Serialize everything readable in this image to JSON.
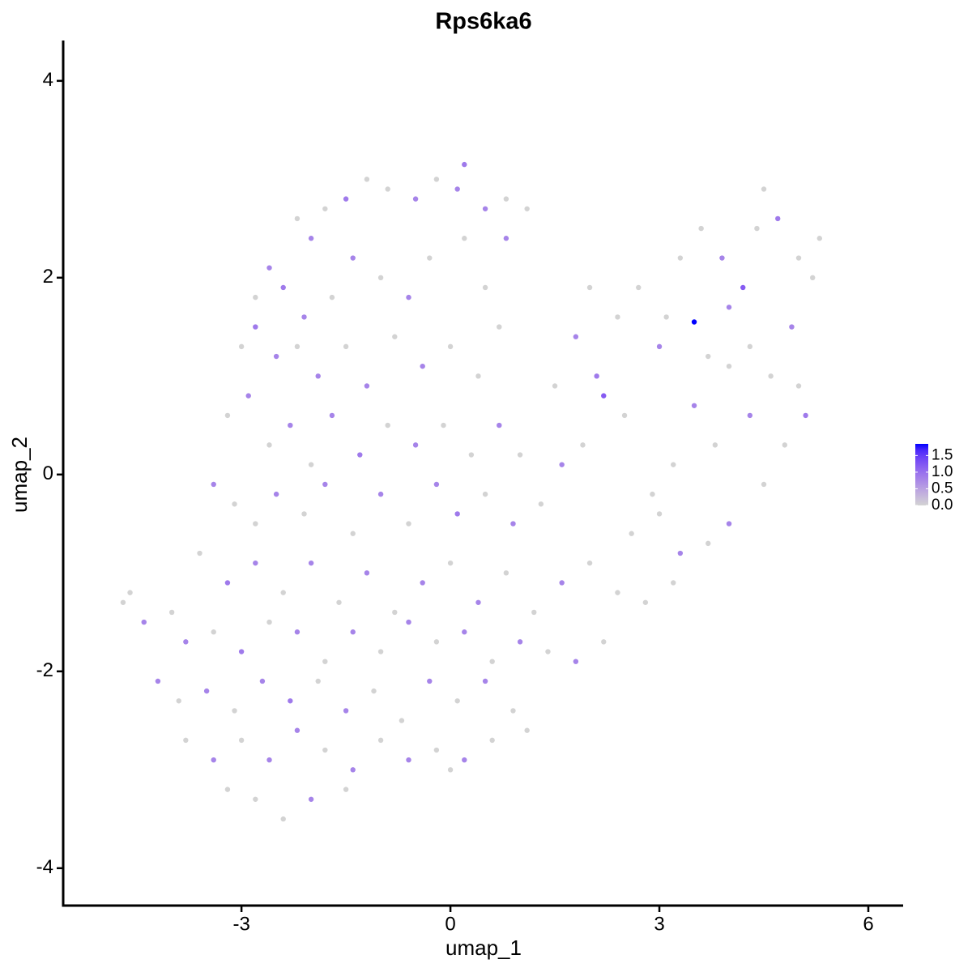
{
  "chart_data": {
    "type": "scatter",
    "title": "Rps6ka6",
    "x_label": "umap_1",
    "y_label": "umap_2",
    "xlim": [
      -5.56,
      6.5
    ],
    "ylim": [
      -4.38,
      4.41
    ],
    "xticks": [
      -3,
      0,
      3,
      6
    ],
    "yticks": [
      -4,
      -2,
      0,
      2,
      4
    ],
    "colors": [
      "#d3d3d3",
      "#0000ff"
    ],
    "color_lim": [
      0,
      1.85
    ],
    "color_ticks": [
      {
        "value": 0,
        "label": "0.0"
      },
      {
        "value": 0.5,
        "label": "0.5"
      },
      {
        "value": 1,
        "label": "1.0"
      },
      {
        "value": 1.5,
        "label": "1.5"
      }
    ],
    "legend_position": "right",
    "x": [
      -2.2,
      -2.0,
      -1.8,
      -1.5,
      -1.2,
      -0.9,
      -0.5,
      -0.2,
      0.1,
      0.2,
      0.5,
      0.8,
      1.1,
      -2.6,
      -2.8,
      -2.4,
      -2.1,
      -1.7,
      -1.4,
      -1.0,
      -0.6,
      -0.3,
      0.2,
      0.5,
      0.8,
      -3.0,
      -2.8,
      -2.5,
      -2.2,
      -1.9,
      -1.5,
      -1.2,
      -0.8,
      -0.4,
      0,
      0.4,
      0.7,
      -3.2,
      -2.9,
      -2.6,
      -2.3,
      -2.0,
      -1.7,
      -1.3,
      -0.9,
      -0.5,
      -0.1,
      0.3,
      0.7,
      1.0,
      -3.4,
      -3.1,
      -2.8,
      -2.5,
      -2.1,
      -1.8,
      -1.4,
      -1.0,
      -0.6,
      -0.2,
      0.1,
      0.5,
      0.9,
      1.3,
      -3.6,
      -3.2,
      -2.8,
      -2.4,
      -2.0,
      -1.6,
      -1.2,
      -0.8,
      -0.4,
      0,
      0.4,
      0.8,
      1.2,
      1.6,
      2.0,
      2.4,
      2.8,
      3.2,
      -4.7,
      -4.6,
      -4.4,
      -4.0,
      -3.8,
      -3.4,
      -3.0,
      -2.6,
      -2.2,
      -1.8,
      -1.4,
      -1.0,
      -0.6,
      -0.2,
      0.2,
      0.6,
      1.0,
      1.4,
      1.8,
      2.2,
      -4.2,
      -3.9,
      -3.5,
      -3.1,
      -2.7,
      -2.3,
      -1.9,
      -1.5,
      -1.1,
      -0.7,
      -0.3,
      0.1,
      0.5,
      0.9,
      1.1,
      -3.8,
      -3.4,
      -3.0,
      -2.6,
      -2.2,
      -1.8,
      -1.4,
      -1.0,
      -0.6,
      -0.2,
      0.2,
      0.6,
      -3.2,
      -2.8,
      -2.4,
      -2.0,
      -1.5,
      0,
      1.5,
      1.8,
      2.1,
      2.4,
      2.7,
      3.0,
      3.3,
      3.5,
      3.7,
      4.0,
      4.2,
      4.4,
      4.5,
      4.7,
      5.0,
      5.2,
      4.9,
      4.6,
      4.3,
      4.0,
      3.8,
      3.5,
      3.2,
      2.9,
      2.5,
      2.2,
      1.9,
      1.6,
      5.1,
      5.0,
      4.8,
      4.5,
      4.0,
      3.7,
      3.3,
      3.0,
      2.6,
      3.9,
      3.6,
      5.3,
      4.3,
      3.1,
      2.0
    ],
    "y": [
      2.6,
      2.4,
      2.7,
      2.8,
      3.0,
      2.9,
      2.8,
      3.0,
      2.9,
      3.15,
      2.7,
      2.8,
      2.7,
      2.1,
      1.8,
      1.9,
      1.6,
      1.8,
      2.2,
      2.0,
      1.8,
      2.2,
      2.4,
      1.9,
      2.4,
      1.3,
      1.5,
      1.2,
      1.3,
      1.0,
      1.3,
      0.9,
      1.4,
      1.1,
      1.3,
      1.0,
      1.5,
      0.6,
      0.8,
      0.3,
      0.5,
      0.1,
      0.6,
      0.2,
      0.5,
      0.3,
      0.5,
      0.2,
      0.5,
      0.2,
      -0.1,
      -0.3,
      -0.5,
      -0.2,
      -0.4,
      -0.1,
      -0.6,
      -0.2,
      -0.5,
      -0.1,
      -0.4,
      -0.2,
      -0.5,
      -0.3,
      -0.8,
      -1.1,
      -0.9,
      -1.2,
      -0.9,
      -1.3,
      -1.0,
      -1.4,
      -1.1,
      -0.9,
      -1.3,
      -1.0,
      -1.4,
      -1.1,
      -0.9,
      -1.2,
      -1.3,
      -1.1,
      -1.3,
      -1.2,
      -1.5,
      -1.4,
      -1.7,
      -1.6,
      -1.8,
      -1.5,
      -1.6,
      -1.9,
      -1.6,
      -1.8,
      -1.5,
      -1.7,
      -1.6,
      -1.9,
      -1.7,
      -1.8,
      -1.9,
      -1.7,
      -2.1,
      -2.3,
      -2.2,
      -2.4,
      -2.1,
      -2.3,
      -2.1,
      -2.4,
      -2.2,
      -2.5,
      -2.1,
      -2.3,
      -2.1,
      -2.4,
      -2.6,
      -2.7,
      -2.9,
      -2.7,
      -2.9,
      -2.6,
      -2.8,
      -3.0,
      -2.7,
      -2.9,
      -2.8,
      -2.9,
      -2.7,
      -3.2,
      -3.3,
      -3.5,
      -3.3,
      -3.2,
      -3.0,
      0.9,
      1.4,
      1.0,
      1.6,
      1.9,
      1.3,
      2.2,
      1.55,
      1.2,
      1.7,
      1.9,
      2.5,
      2.9,
      2.6,
      2.2,
      2.0,
      1.5,
      1.0,
      0.6,
      1.1,
      0.3,
      0.7,
      0.1,
      -0.2,
      0.6,
      0.8,
      0.3,
      0.1,
      0.6,
      0.9,
      0.3,
      -0.1,
      -0.5,
      -0.7,
      -0.8,
      -0.4,
      -0.6,
      2.2,
      2.5,
      2.4,
      1.3,
      1.6,
      1.9
    ],
    "values": [
      0,
      0.8,
      0,
      0.9,
      0,
      0,
      0.8,
      0,
      0.8,
      0.9,
      0.8,
      0,
      0,
      0.8,
      0,
      0.9,
      0.8,
      0,
      0.8,
      0,
      0.8,
      0,
      0,
      0,
      0.8,
      0,
      0.9,
      0.8,
      0,
      0.8,
      0,
      0.8,
      0,
      0.8,
      0,
      0,
      0,
      0,
      0.8,
      0,
      0.8,
      0,
      0.8,
      0.9,
      0,
      0.8,
      0,
      0,
      0.8,
      0,
      0.8,
      0,
      0,
      0.8,
      0,
      0.8,
      0,
      0.8,
      0,
      0.8,
      0.9,
      0,
      0.8,
      0,
      0,
      0.9,
      0.8,
      0,
      0.8,
      0,
      0.8,
      0,
      0.8,
      0,
      0.8,
      0,
      0,
      0.8,
      0,
      0,
      0,
      0,
      0,
      0,
      0.8,
      0,
      0.8,
      0,
      0.9,
      0,
      0.8,
      0,
      0.8,
      0,
      0.8,
      0,
      0.8,
      0,
      0.8,
      0,
      0.8,
      0,
      0.8,
      0,
      0.8,
      0,
      0.8,
      0.9,
      0,
      0.8,
      0,
      0,
      0.8,
      0,
      0.8,
      0,
      0,
      0,
      0.8,
      0,
      0.8,
      0.8,
      0,
      0.8,
      0,
      0.8,
      0,
      0.8,
      0,
      0,
      0,
      0,
      0.8,
      0,
      0,
      0,
      0.8,
      0.9,
      0,
      0,
      0.8,
      0,
      1.85,
      0,
      0.8,
      1.2,
      0,
      0,
      0.9,
      0,
      0,
      0.8,
      0,
      0.8,
      0,
      0,
      0.8,
      0,
      0,
      0,
      1.2,
      0,
      0.8,
      0.9,
      0,
      0,
      0,
      0.8,
      0,
      0.8,
      0,
      0,
      0.8,
      0,
      0,
      0,
      0,
      0
    ]
  }
}
